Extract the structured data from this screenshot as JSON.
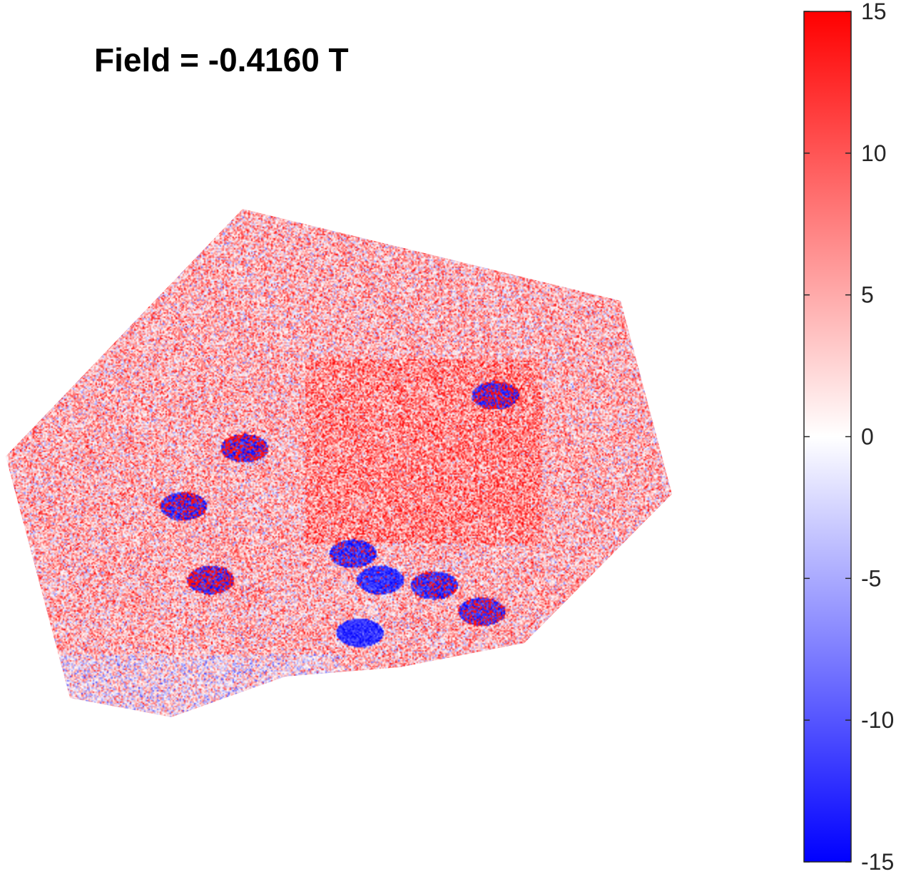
{
  "chart_data": {
    "type": "heatmap",
    "title": "Field = -0.4160 T",
    "xlabel": "",
    "ylabel": "",
    "axes_visible": false,
    "colormap": {
      "name": "blue-white-red",
      "low_color": "#0000ff",
      "mid_color": "#ffffff",
      "high_color": "#ff0000"
    },
    "colorbar": {
      "location": "right",
      "clim": [
        -15,
        15
      ],
      "ticks": [
        15,
        10,
        5,
        0,
        -5,
        -10,
        -15
      ],
      "tick_labels": [
        "15",
        "10",
        "5",
        "0",
        "-5",
        "-10",
        "-15"
      ]
    },
    "map_description_values": {
      "background_level": 4,
      "noise_amplitude": 5
    }
  }
}
